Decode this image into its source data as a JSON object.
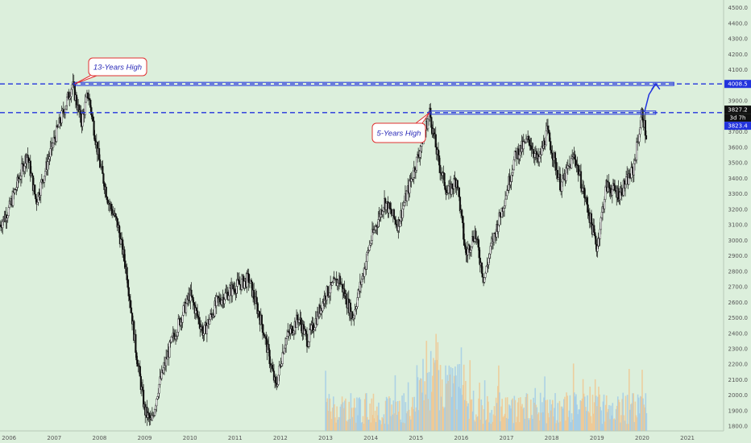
{
  "colors": {
    "background": "#dcefdc",
    "candle": "#111111",
    "level_line": "#2233dd",
    "annotation_border": "#e03030",
    "volume_a": "#f2c38a",
    "volume_b": "#9cc8e8",
    "tag_dark": "#111111",
    "tag_blue": "#2233dd"
  },
  "chart_data": {
    "type": "candlestick",
    "title": "",
    "xlabel": "",
    "ylabel": "",
    "x_ticks": [
      "2006",
      "2007",
      "2008",
      "2009",
      "2010",
      "2011",
      "2012",
      "2013",
      "2014",
      "2015",
      "2016",
      "2017",
      "2018",
      "2019",
      "2020",
      "2021"
    ],
    "y_ticks": [
      "1800.0",
      "1900.0",
      "2000.0",
      "2100.0",
      "2200.0",
      "2300.0",
      "2400.0",
      "2500.0",
      "2600.0",
      "2700.0",
      "2800.0",
      "2900.0",
      "3000.0",
      "3100.0",
      "3200.0",
      "3300.0",
      "3400.0",
      "3500.0",
      "3600.0",
      "3700.0",
      "3800.0",
      "3900.0",
      "4000.0",
      "4100.0",
      "4200.0",
      "4300.0",
      "4400.0",
      "4500.0"
    ],
    "ylim": [
      1770,
      4550
    ],
    "xlim": [
      2005.8,
      2021.8
    ],
    "grid": false,
    "price_path": [
      [
        2005.8,
        3100
      ],
      [
        2006.0,
        3200
      ],
      [
        2006.4,
        3560
      ],
      [
        2006.6,
        3250
      ],
      [
        2007.0,
        3650
      ],
      [
        2007.4,
        4008
      ],
      [
        2007.6,
        3760
      ],
      [
        2007.75,
        3950
      ],
      [
        2008.0,
        3500
      ],
      [
        2008.2,
        3250
      ],
      [
        2008.4,
        3100
      ],
      [
        2008.6,
        2800
      ],
      [
        2008.8,
        2300
      ],
      [
        2009.0,
        1900
      ],
      [
        2009.15,
        1820
      ],
      [
        2009.3,
        2050
      ],
      [
        2009.6,
        2350
      ],
      [
        2010.0,
        2650
      ],
      [
        2010.3,
        2400
      ],
      [
        2010.6,
        2600
      ],
      [
        2011.0,
        2700
      ],
      [
        2011.3,
        2750
      ],
      [
        2011.6,
        2450
      ],
      [
        2011.9,
        2050
      ],
      [
        2012.1,
        2350
      ],
      [
        2012.4,
        2500
      ],
      [
        2012.6,
        2350
      ],
      [
        2013.0,
        2650
      ],
      [
        2013.3,
        2750
      ],
      [
        2013.6,
        2500
      ],
      [
        2014.0,
        3000
      ],
      [
        2014.3,
        3250
      ],
      [
        2014.6,
        3100
      ],
      [
        2014.9,
        3400
      ],
      [
        2015.1,
        3600
      ],
      [
        2015.3,
        3827
      ],
      [
        2015.5,
        3500
      ],
      [
        2015.7,
        3300
      ],
      [
        2015.9,
        3400
      ],
      [
        2016.1,
        2900
      ],
      [
        2016.3,
        3050
      ],
      [
        2016.5,
        2750
      ],
      [
        2016.7,
        3000
      ],
      [
        2016.9,
        3200
      ],
      [
        2017.2,
        3550
      ],
      [
        2017.5,
        3650
      ],
      [
        2017.7,
        3500
      ],
      [
        2017.9,
        3700
      ],
      [
        2018.2,
        3350
      ],
      [
        2018.5,
        3550
      ],
      [
        2018.8,
        3200
      ],
      [
        2019.0,
        2950
      ],
      [
        2019.2,
        3350
      ],
      [
        2019.5,
        3300
      ],
      [
        2019.8,
        3450
      ],
      [
        2020.0,
        3827
      ],
      [
        2020.1,
        3650
      ]
    ],
    "levels": [
      {
        "name": "13-years-high",
        "value": 4008.5,
        "tag": "4008.5"
      },
      {
        "name": "5-years-high",
        "value": 3823.4,
        "tag": "3823.4"
      }
    ],
    "current_price_tag": "3827.2",
    "countdown_tag": "3d 7h",
    "annotations": [
      {
        "text": "13-Years High",
        "x": 2007.45,
        "y": 4008.5
      },
      {
        "text": "5-Years High",
        "x": 2015.3,
        "y": 3823.4
      }
    ],
    "projection": [
      [
        2020.05,
        3827
      ],
      [
        2020.15,
        3940
      ],
      [
        2020.3,
        4010
      ]
    ],
    "volume": "relative bars along the bottom from 2013 to 2020"
  }
}
